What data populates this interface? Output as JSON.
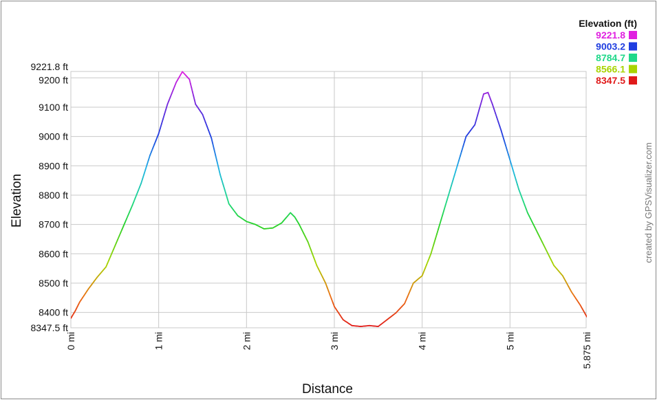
{
  "chart_data": {
    "type": "line",
    "xlabel": "Distance",
    "ylabel": "Elevation",
    "xlim": [
      0,
      5.875
    ],
    "ylim": [
      8347.5,
      9221.8
    ],
    "grid": true,
    "x_ticks": [
      {
        "value": 0,
        "label": "0 mi"
      },
      {
        "value": 1,
        "label": "1 mi"
      },
      {
        "value": 2,
        "label": "2 mi"
      },
      {
        "value": 3,
        "label": "3 mi"
      },
      {
        "value": 4,
        "label": "4 mi"
      },
      {
        "value": 5,
        "label": "5 mi"
      },
      {
        "value": 5.875,
        "label": "5.875 mi"
      }
    ],
    "y_ticks": [
      {
        "value": 8347.5,
        "label": "8347.5 ft"
      },
      {
        "value": 8400,
        "label": "8400 ft"
      },
      {
        "value": 8500,
        "label": "8500 ft"
      },
      {
        "value": 8600,
        "label": "8600 ft"
      },
      {
        "value": 8700,
        "label": "8700 ft"
      },
      {
        "value": 8800,
        "label": "8800 ft"
      },
      {
        "value": 8900,
        "label": "8900 ft"
      },
      {
        "value": 9000,
        "label": "9000 ft"
      },
      {
        "value": 9100,
        "label": "9100 ft"
      },
      {
        "value": 9200,
        "label": "9200 ft"
      },
      {
        "value": 9221.8,
        "label": "9221.8 ft"
      }
    ],
    "legend": {
      "title": "Elevation (ft)",
      "placement": "top-right",
      "entries": [
        {
          "label": "9221.8",
          "color": "#e020e0"
        },
        {
          "label": "9003.2",
          "color": "#1f3ee0"
        },
        {
          "label": "8784.7",
          "color": "#1fd88a"
        },
        {
          "label": "8566.1",
          "color": "#a8d400"
        },
        {
          "label": "8347.5",
          "color": "#e01a1a"
        }
      ]
    },
    "series": [
      {
        "x": [
          0,
          0.05,
          0.1,
          0.2,
          0.3,
          0.4,
          0.5,
          0.6,
          0.7,
          0.8,
          0.9,
          1.0,
          1.1,
          1.2,
          1.27,
          1.35,
          1.42,
          1.5,
          1.6,
          1.7,
          1.8,
          1.9,
          2.0,
          2.1,
          2.2,
          2.3,
          2.4,
          2.5,
          2.55,
          2.6,
          2.7,
          2.8,
          2.9,
          3.0,
          3.1,
          3.2,
          3.3,
          3.4,
          3.5,
          3.6,
          3.7,
          3.8,
          3.9,
          4.0,
          4.1,
          4.2,
          4.3,
          4.4,
          4.5,
          4.6,
          4.7,
          4.75,
          4.8,
          4.9,
          5.0,
          5.1,
          5.2,
          5.3,
          5.4,
          5.5,
          5.6,
          5.7,
          5.8,
          5.875
        ],
        "y": [
          8380,
          8405,
          8435,
          8480,
          8520,
          8555,
          8625,
          8695,
          8765,
          8840,
          8935,
          9010,
          9110,
          9185,
          9221,
          9195,
          9110,
          9075,
          8995,
          8870,
          8770,
          8730,
          8710,
          8700,
          8685,
          8688,
          8705,
          8740,
          8725,
          8700,
          8640,
          8560,
          8500,
          8420,
          8375,
          8355,
          8352,
          8355,
          8352,
          8375,
          8398,
          8430,
          8500,
          8525,
          8600,
          8700,
          8800,
          8900,
          9000,
          9040,
          9145,
          9150,
          9110,
          9020,
          8920,
          8820,
          8740,
          8680,
          8620,
          8560,
          8525,
          8470,
          8425,
          8385
        ]
      }
    ]
  },
  "watermark": "created by GPSVisualizer.com"
}
